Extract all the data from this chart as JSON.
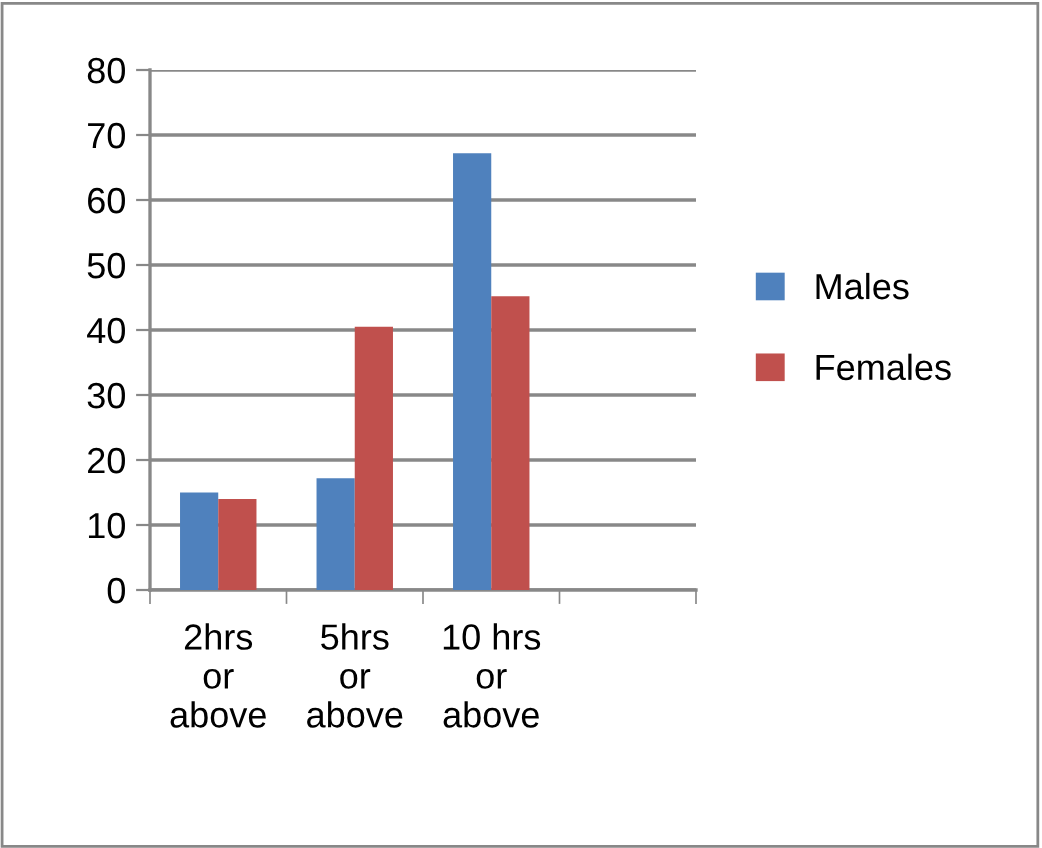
{
  "chart_data": {
    "type": "bar",
    "categories": [
      "2hrs\nor\nabove",
      "5hrs\nor\nabove",
      "10 hrs\nor\nabove",
      null
    ],
    "series": [
      {
        "name": "Males",
        "color": "#4f81bd",
        "values": [
          15,
          17.2,
          67.2,
          null
        ]
      },
      {
        "name": "Females",
        "color": "#c0504d",
        "values": [
          14,
          40.5,
          45.2,
          null
        ]
      }
    ],
    "ylim": [
      0,
      80
    ],
    "yticks": [
      0,
      10,
      20,
      30,
      40,
      50,
      60,
      70,
      80
    ],
    "grid": "y",
    "legend": "right"
  }
}
